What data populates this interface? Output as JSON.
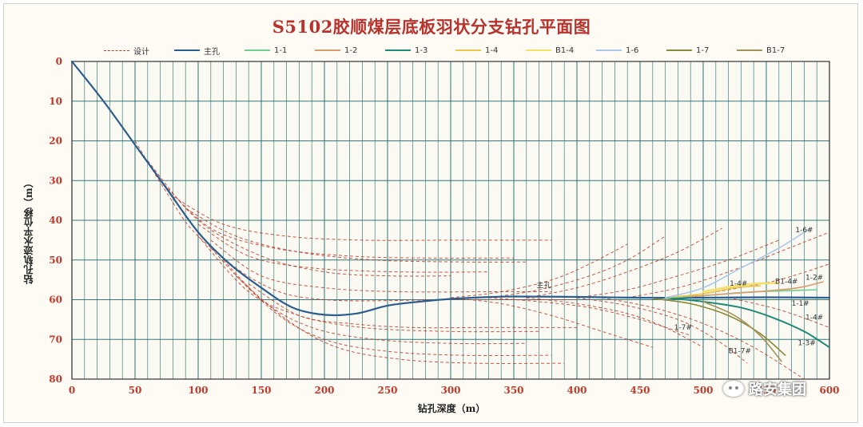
{
  "title": "S5102胶顺煤层底板羽状分支钻孔平面图",
  "watermark": "路安集团",
  "colors": {
    "title": "#b8322e",
    "grid": "#1f6b6e",
    "tick": "#c0392b",
    "design": "#c0392b",
    "main": "#2c5d8f"
  },
  "chart_data": {
    "type": "line",
    "title": "S5102胶顺煤层底板羽状分支钻孔平面图",
    "xlabel": "钻孔深度（m）",
    "ylabel": "钻孔轨迹水平位移（m）",
    "xlim": [
      0,
      600
    ],
    "ylim": [
      0,
      80
    ],
    "y_inverted": true,
    "grid": true,
    "legend_position": "top",
    "x_ticks": [
      "0",
      "50",
      "100",
      "150",
      "200",
      "250",
      "300",
      "350",
      "400",
      "450",
      "500",
      "550",
      "600"
    ],
    "y_ticks": [
      "0",
      "10",
      "20",
      "30",
      "40",
      "50",
      "60",
      "70",
      "80"
    ],
    "legend": [
      {
        "label": "设计",
        "color": "#c0392b",
        "dash": true
      },
      {
        "label": "主孔",
        "color": "#2c5d8f",
        "dash": false
      },
      {
        "label": "1-1",
        "color": "#6fcf8e",
        "dash": false
      },
      {
        "label": "1-2",
        "color": "#d99a6c",
        "dash": false
      },
      {
        "label": "1-3",
        "color": "#1f8a76",
        "dash": false
      },
      {
        "label": "1-4",
        "color": "#e8c64a",
        "dash": false
      },
      {
        "label": "B1-4",
        "color": "#f3e06a",
        "dash": false
      },
      {
        "label": "1-6",
        "color": "#a9c8e8",
        "dash": false
      },
      {
        "label": "1-7",
        "color": "#8a8a3a",
        "dash": false
      },
      {
        "label": "B1-7",
        "color": "#a6935a",
        "dash": false
      }
    ],
    "series": [
      {
        "name": "主孔",
        "color": "#2c5d8f",
        "width": 2.2,
        "x": [
          0,
          25,
          50,
          75,
          100,
          125,
          150,
          175,
          200,
          225,
          250,
          275,
          300,
          325,
          350,
          400,
          450,
          500,
          550,
          600
        ],
        "y": [
          0,
          10,
          21,
          32,
          43,
          51,
          57,
          62,
          63.8,
          63.5,
          61.5,
          60.5,
          59.8,
          59.4,
          59.2,
          59.3,
          59.5,
          59.5,
          59.4,
          59.5
        ]
      },
      {
        "name": "1-1",
        "color": "#6fcf8e",
        "width": 1.6,
        "x": [
          470,
          500,
          530,
          560,
          590
        ],
        "y": [
          59.5,
          59,
          58.2,
          57.8,
          57.5
        ]
      },
      {
        "name": "1-2",
        "color": "#d99a6c",
        "width": 1.6,
        "x": [
          490,
          520,
          550,
          575,
          595
        ],
        "y": [
          59.2,
          58.5,
          57.8,
          57,
          55.5
        ]
      },
      {
        "name": "1-3",
        "color": "#1f8a76",
        "width": 2.0,
        "x": [
          470,
          500,
          530,
          555,
          580,
          600
        ],
        "y": [
          59.5,
          60.5,
          62,
          64.5,
          68,
          72
        ]
      },
      {
        "name": "1-4",
        "color": "#e8c64a",
        "width": 1.6,
        "x": [
          470,
          500,
          525,
          545
        ],
        "y": [
          59.5,
          58.5,
          57,
          56.5
        ]
      },
      {
        "name": "B1-4",
        "color": "#f3e06a",
        "width": 2.5,
        "x": [
          500,
          520,
          540,
          560
        ],
        "y": [
          58,
          56.8,
          56,
          55.8
        ]
      },
      {
        "name": "1-6",
        "color": "#a9c8e8",
        "width": 1.6,
        "x": [
          470,
          500,
          530,
          560,
          585
        ],
        "y": [
          59.5,
          57,
          52,
          47,
          42
        ]
      },
      {
        "name": "1-7",
        "color": "#8a8a3a",
        "width": 1.6,
        "x": [
          460,
          490,
          520,
          545,
          565
        ],
        "y": [
          59.7,
          61,
          64,
          68.5,
          74
        ]
      },
      {
        "name": "B1-7",
        "color": "#a6935a",
        "width": 1.6,
        "x": [
          500,
          525,
          545,
          562
        ],
        "y": [
          60.5,
          64,
          69,
          75.5
        ]
      }
    ],
    "design_curves": [
      {
        "x": [
          50,
          75,
          100,
          150,
          200,
          300,
          400
        ],
        "y": [
          20,
          33,
          44,
          56,
          60,
          60,
          60
        ]
      },
      {
        "x": [
          60,
          100,
          150,
          200,
          250,
          300
        ],
        "y": [
          25,
          40,
          49,
          53,
          54,
          54
        ]
      },
      {
        "x": [
          70,
          110,
          160,
          220,
          280,
          350
        ],
        "y": [
          30,
          42,
          47,
          49,
          49.5,
          49.5
        ]
      },
      {
        "x": [
          80,
          120,
          170,
          230,
          300,
          380
        ],
        "y": [
          34,
          41,
          44,
          45,
          45,
          45
        ]
      },
      {
        "x": [
          90,
          130,
          180,
          240,
          310,
          360
        ],
        "y": [
          37,
          44,
          48,
          50,
          50.5,
          50.5
        ]
      },
      {
        "x": [
          100,
          140,
          190,
          260,
          330
        ],
        "y": [
          41,
          49,
          52,
          53,
          53
        ]
      },
      {
        "x": [
          110,
          150,
          200,
          260,
          330,
          380
        ],
        "y": [
          45,
          54,
          57,
          58,
          58,
          58
        ]
      },
      {
        "x": [
          100,
          140,
          180,
          230,
          300,
          370
        ],
        "y": [
          44,
          58,
          64,
          67,
          68,
          68
        ]
      },
      {
        "x": [
          110,
          150,
          190,
          240,
          300,
          360
        ],
        "y": [
          47,
          60,
          67,
          70,
          71,
          71
        ]
      },
      {
        "x": [
          120,
          160,
          200,
          250,
          310,
          380
        ],
        "y": [
          50,
          63,
          70,
          73,
          74,
          74
        ]
      },
      {
        "x": [
          130,
          170,
          210,
          260,
          320,
          390
        ],
        "y": [
          54,
          65,
          72,
          75,
          76,
          76
        ]
      },
      {
        "x": [
          140,
          180,
          220,
          270,
          330,
          400
        ],
        "y": [
          56,
          64,
          66,
          67,
          67,
          67
        ]
      },
      {
        "x": [
          300,
          340,
          380,
          420,
          460
        ],
        "y": [
          59.5,
          61,
          64,
          68,
          72
        ]
      },
      {
        "x": [
          330,
          370,
          410,
          450,
          490
        ],
        "y": [
          59.5,
          60.5,
          62,
          65,
          69
        ]
      },
      {
        "x": [
          360,
          400,
          440,
          470,
          500
        ],
        "y": [
          59.5,
          61,
          63.5,
          67,
          72
        ]
      },
      {
        "x": [
          400,
          440,
          480,
          510,
          535
        ],
        "y": [
          59.5,
          61.5,
          65,
          70,
          76
        ]
      },
      {
        "x": [
          420,
          460,
          500,
          540,
          580
        ],
        "y": [
          59.5,
          62,
          66,
          72,
          80
        ]
      },
      {
        "x": [
          300,
          340,
          380,
          410,
          440
        ],
        "y": [
          59.5,
          58,
          55,
          51,
          46
        ]
      },
      {
        "x": [
          330,
          370,
          410,
          440,
          470
        ],
        "y": [
          59.5,
          57.5,
          54,
          50,
          44
        ]
      },
      {
        "x": [
          360,
          400,
          440,
          480,
          515
        ],
        "y": [
          59.5,
          57,
          53,
          48,
          42
        ]
      },
      {
        "x": [
          400,
          440,
          480,
          520,
          560
        ],
        "y": [
          59.5,
          57.5,
          54,
          50,
          45
        ]
      },
      {
        "x": [
          440,
          480,
          520,
          560,
          600
        ],
        "y": [
          59.5,
          57,
          53,
          48,
          43
        ]
      },
      {
        "x": [
          480,
          520,
          560,
          600
        ],
        "y": [
          59.5,
          57.5,
          55,
          51
        ]
      },
      {
        "x": [
          520,
          560,
          600
        ],
        "y": [
          59.5,
          62.5,
          67
        ]
      }
    ],
    "annotations": [
      {
        "text": "主孔",
        "x": 368,
        "y": 57
      },
      {
        "text": "1-6#",
        "x": 573,
        "y": 43
      },
      {
        "text": "1-4#",
        "x": 521,
        "y": 56.5
      },
      {
        "text": "B1-4#",
        "x": 557,
        "y": 56
      },
      {
        "text": "1-2#",
        "x": 581,
        "y": 55
      },
      {
        "text": "1-1#",
        "x": 570,
        "y": 61.5
      },
      {
        "text": "1-4#",
        "x": 581,
        "y": 65
      },
      {
        "text": "1-7#",
        "x": 477,
        "y": 67.5
      },
      {
        "text": "B1-7#",
        "x": 520,
        "y": 73.5
      },
      {
        "text": "1-3#",
        "x": 575,
        "y": 71.5
      }
    ]
  }
}
